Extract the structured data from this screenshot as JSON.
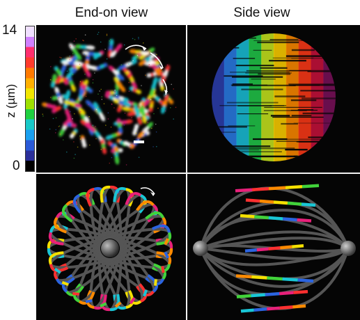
{
  "titles": {
    "end_on": "End-on view",
    "side": "Side view"
  },
  "axis": {
    "max_label": "14",
    "min_label": "0",
    "label": "z (µm)"
  },
  "colorbar_colors": [
    "#f0e0ff",
    "#d080ff",
    "#ff2f6e",
    "#ff3b2d",
    "#ff7a00",
    "#ffb000",
    "#f2e600",
    "#9ee000",
    "#1fd140",
    "#18c9c8",
    "#1aa0f0",
    "#2a5ad8",
    "#2b2f9a",
    "#000000"
  ],
  "palette": [
    "#e8207a",
    "#ff3030",
    "#ff8a00",
    "#f5e000",
    "#41d33a",
    "#19c6d6",
    "#2b64e0",
    "#ffffff"
  ],
  "side_colors": [
    "#2d3fb0",
    "#2a7ce6",
    "#1ac0d8",
    "#22c84a",
    "#c8e61e",
    "#ffd000",
    "#ff8a00",
    "#ff3a18",
    "#c8123c",
    "#7a105a"
  ]
}
